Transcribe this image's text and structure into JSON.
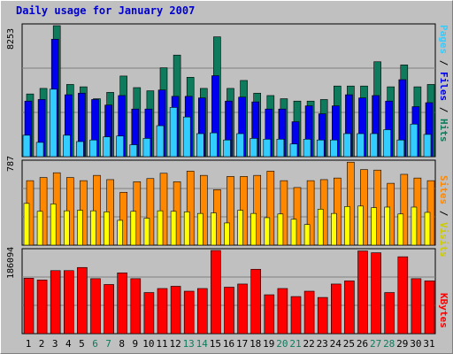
{
  "title": "Daily usage for January 2007",
  "colors": {
    "background": "#c0c0c0",
    "hits": "#0d7b5c",
    "files": "#0000ee",
    "pages": "#33ccff",
    "visits": "#ffff00",
    "sites": "#ff8800",
    "kbytes": "#ff0000",
    "weekend_label": "#0d7b5c",
    "weekday_label": "#000000"
  },
  "legend": {
    "pages": "Pages",
    "files": "Files",
    "hits": "Hits",
    "visits": "Visits",
    "sites": "Sites",
    "kbytes": "KBytes",
    "separator": " / "
  },
  "chart_data": [
    {
      "type": "bar",
      "title": "Daily usage for January 2007",
      "ylabel": "",
      "ymax_label": "8253",
      "ylim": [
        0,
        8253
      ],
      "categories": [
        "1",
        "2",
        "3",
        "4",
        "5",
        "6",
        "7",
        "8",
        "9",
        "10",
        "11",
        "12",
        "13",
        "14",
        "15",
        "16",
        "17",
        "18",
        "19",
        "20",
        "21",
        "22",
        "23",
        "24",
        "25",
        "26",
        "27",
        "28",
        "29",
        "30",
        "31"
      ],
      "series": [
        {
          "name": "Hits",
          "values": [
            3950,
            4300,
            8253,
            4550,
            4400,
            3650,
            4050,
            5080,
            4350,
            4150,
            5600,
            6400,
            5000,
            4300,
            7550,
            4300,
            4800,
            4000,
            3850,
            3650,
            3500,
            3500,
            3600,
            4450,
            4450,
            4450,
            5980,
            4400,
            5780,
            4400,
            4550
          ]
        },
        {
          "name": "Files",
          "values": [
            3500,
            3600,
            7400,
            3900,
            4000,
            3600,
            3250,
            3850,
            3000,
            3000,
            4200,
            3800,
            3800,
            3700,
            5100,
            3500,
            3750,
            3450,
            3000,
            3000,
            2200,
            3200,
            2700,
            3200,
            3900,
            3700,
            3850,
            3500,
            4850,
            3150,
            3400
          ]
        },
        {
          "name": "Pages",
          "values": [
            1350,
            900,
            4250,
            1350,
            950,
            1050,
            1250,
            1300,
            750,
            1150,
            1950,
            3100,
            2500,
            1450,
            1500,
            1050,
            1450,
            1150,
            1100,
            1100,
            800,
            1100,
            1050,
            1050,
            1450,
            1450,
            1450,
            1700,
            1050,
            2050,
            1400
          ]
        }
      ]
    },
    {
      "type": "bar",
      "ymax_label": "787",
      "ylim": [
        0,
        787
      ],
      "categories": [
        "1",
        "2",
        "3",
        "4",
        "5",
        "6",
        "7",
        "8",
        "9",
        "10",
        "11",
        "12",
        "13",
        "14",
        "15",
        "16",
        "17",
        "18",
        "19",
        "20",
        "21",
        "22",
        "23",
        "24",
        "25",
        "26",
        "27",
        "28",
        "29",
        "30",
        "31"
      ],
      "series": [
        {
          "name": "Sites",
          "values": [
            610,
            640,
            685,
            640,
            610,
            660,
            620,
            500,
            600,
            630,
            680,
            600,
            700,
            660,
            525,
            650,
            650,
            660,
            700,
            610,
            545,
            610,
            620,
            635,
            785,
            715,
            710,
            585,
            670,
            635,
            610
          ]
        },
        {
          "name": "Visits",
          "values": [
            395,
            320,
            390,
            325,
            330,
            325,
            315,
            235,
            320,
            255,
            325,
            320,
            315,
            300,
            305,
            210,
            330,
            300,
            260,
            295,
            245,
            195,
            340,
            300,
            365,
            370,
            355,
            360,
            295,
            360,
            310
          ]
        }
      ]
    },
    {
      "type": "bar",
      "ymax_label": "186094",
      "ylim": [
        0,
        186094
      ],
      "categories": [
        "1",
        "2",
        "3",
        "4",
        "5",
        "6",
        "7",
        "8",
        "9",
        "10",
        "11",
        "12",
        "13",
        "14",
        "15",
        "16",
        "17",
        "18",
        "19",
        "20",
        "21",
        "22",
        "23",
        "24",
        "25",
        "26",
        "27",
        "28",
        "29",
        "30",
        "31"
      ],
      "series": [
        {
          "name": "KBytes",
          "values": [
            124000,
            120000,
            141000,
            141000,
            148000,
            123000,
            110000,
            136000,
            123000,
            92000,
            101000,
            106000,
            95000,
            101000,
            186094,
            104000,
            111000,
            144000,
            87000,
            101000,
            83000,
            95000,
            81000,
            111000,
            118000,
            185000,
            181000,
            92000,
            172000,
            123000,
            118000
          ]
        }
      ]
    }
  ],
  "x_labels": [
    "1",
    "2",
    "3",
    "4",
    "5",
    "6",
    "7",
    "8",
    "9",
    "10",
    "11",
    "12",
    "13",
    "14",
    "15",
    "16",
    "17",
    "18",
    "19",
    "20",
    "21",
    "22",
    "23",
    "24",
    "25",
    "26",
    "27",
    "28",
    "29",
    "30",
    "31"
  ],
  "weekend_days": [
    "6",
    "7",
    "13",
    "14",
    "20",
    "21",
    "27",
    "28"
  ]
}
